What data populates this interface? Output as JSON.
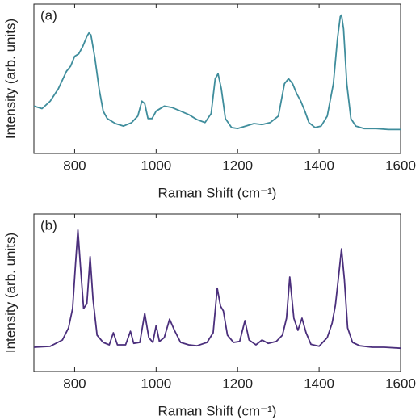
{
  "chart_data": [
    {
      "type": "line",
      "annotation": "(a)",
      "xlabel": "Raman Shift (cm⁻¹)",
      "ylabel": "Intensity (arb. units)",
      "xlim": [
        700,
        1600
      ],
      "xticks": [
        800,
        1000,
        1200,
        1400,
        1600
      ],
      "ylim": [
        0,
        3
      ],
      "series": [
        {
          "color": "#3f8d9c",
          "x": [
            700,
            720,
            740,
            760,
            780,
            790,
            800,
            810,
            820,
            830,
            835,
            840,
            850,
            860,
            870,
            880,
            900,
            920,
            940,
            955,
            965,
            972,
            980,
            990,
            1000,
            1020,
            1040,
            1060,
            1080,
            1100,
            1120,
            1135,
            1145,
            1152,
            1160,
            1170,
            1185,
            1200,
            1220,
            1240,
            1260,
            1280,
            1300,
            1315,
            1325,
            1335,
            1345,
            1355,
            1365,
            1375,
            1390,
            1405,
            1420,
            1435,
            1445,
            1452,
            1455,
            1460,
            1468,
            1478,
            1490,
            1510,
            1540,
            1570,
            1600
          ],
          "values": [
            0.95,
            0.9,
            1.05,
            1.3,
            1.65,
            1.75,
            1.95,
            2.0,
            2.15,
            2.35,
            2.42,
            2.38,
            1.9,
            1.3,
            0.85,
            0.7,
            0.6,
            0.55,
            0.62,
            0.75,
            1.05,
            1.0,
            0.7,
            0.7,
            0.85,
            0.95,
            0.92,
            0.85,
            0.78,
            0.68,
            0.62,
            0.8,
            1.5,
            1.6,
            1.3,
            0.7,
            0.52,
            0.5,
            0.55,
            0.6,
            0.58,
            0.62,
            0.75,
            1.4,
            1.5,
            1.4,
            1.2,
            1.05,
            0.85,
            0.62,
            0.52,
            0.55,
            0.75,
            1.4,
            2.3,
            2.75,
            2.78,
            2.5,
            1.4,
            0.7,
            0.55,
            0.5,
            0.5,
            0.48,
            0.48
          ]
        }
      ]
    },
    {
      "type": "line",
      "annotation": "(b)",
      "xlabel": "Raman Shift (cm⁻¹)",
      "ylabel": "Intensity (arb. units)",
      "xlim": [
        700,
        1600
      ],
      "xticks": [
        800,
        1000,
        1200,
        1400,
        1600
      ],
      "ylim": [
        0,
        3.25
      ],
      "series": [
        {
          "color": "#4b2f7c",
          "x": [
            700,
            740,
            770,
            785,
            795,
            802,
            808,
            814,
            822,
            830,
            838,
            845,
            855,
            870,
            885,
            895,
            905,
            925,
            937,
            945,
            960,
            972,
            982,
            992,
            1000,
            1008,
            1020,
            1033,
            1045,
            1060,
            1080,
            1100,
            1125,
            1140,
            1150,
            1158,
            1165,
            1175,
            1190,
            1205,
            1218,
            1228,
            1245,
            1260,
            1275,
            1295,
            1310,
            1320,
            1328,
            1338,
            1348,
            1358,
            1368,
            1380,
            1400,
            1420,
            1432,
            1440,
            1447,
            1455,
            1462,
            1470,
            1482,
            1500,
            1530,
            1560,
            1600
          ],
          "values": [
            0.5,
            0.52,
            0.65,
            0.9,
            1.3,
            2.2,
            2.92,
            2.2,
            1.3,
            1.4,
            2.37,
            1.5,
            0.75,
            0.6,
            0.55,
            0.8,
            0.55,
            0.55,
            0.83,
            0.58,
            0.6,
            1.2,
            0.7,
            0.6,
            0.95,
            0.62,
            0.7,
            1.08,
            0.85,
            0.6,
            0.55,
            0.53,
            0.6,
            0.8,
            1.72,
            1.35,
            1.25,
            0.75,
            0.6,
            0.62,
            1.05,
            0.65,
            0.55,
            0.65,
            0.58,
            0.62,
            0.75,
            1.1,
            1.95,
            1.1,
            0.85,
            1.1,
            0.8,
            0.56,
            0.52,
            0.7,
            1.0,
            1.37,
            1.9,
            2.53,
            1.9,
            0.9,
            0.6,
            0.53,
            0.5,
            0.5,
            0.48
          ]
        }
      ]
    }
  ]
}
